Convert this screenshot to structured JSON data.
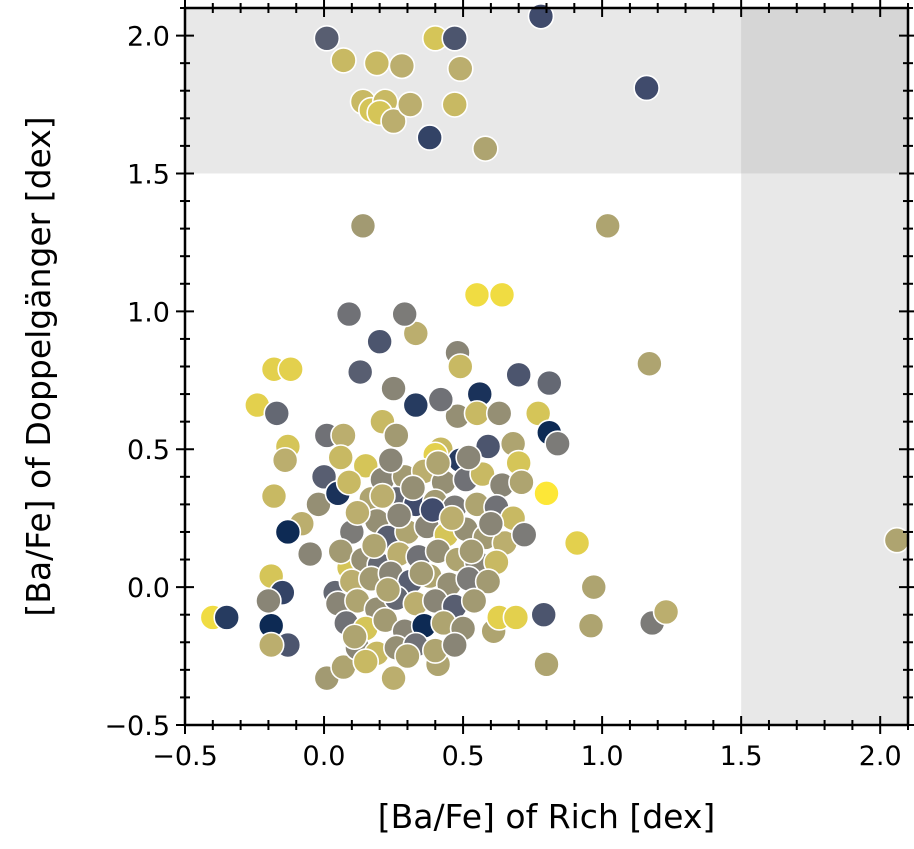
{
  "chart_data": {
    "type": "scatter",
    "title": "",
    "xlabel": "[Ba/Fe] of Rich [dex]",
    "ylabel": "[Ba/Fe] of Doppelgänger [dex]",
    "xlim": [
      -0.5,
      2.1
    ],
    "ylim": [
      -0.5,
      2.1
    ],
    "xticks": [
      -0.5,
      0.0,
      0.5,
      1.0,
      1.5,
      2.0
    ],
    "yticks": [
      -0.5,
      0.0,
      0.5,
      1.0,
      1.5,
      2.0
    ],
    "xtick_labels": [
      "−0.5",
      "0.0",
      "0.5",
      "1.0",
      "1.5",
      "2.0"
    ],
    "ytick_labels": [
      "−0.5",
      "0.0",
      "0.5",
      "1.0",
      "1.5",
      "2.0"
    ],
    "grid": false,
    "legend": "none",
    "colormap": "cividis",
    "shaded_regions": [
      {
        "axis": "y",
        "from": 1.5,
        "to": 2.1
      },
      {
        "axis": "x",
        "from": 1.5,
        "to": 2.1
      }
    ],
    "points": [
      [
        0.01,
        1.99,
        0.35
      ],
      [
        0.07,
        1.91,
        0.8
      ],
      [
        0.19,
        1.9,
        0.8
      ],
      [
        0.28,
        1.89,
        0.75
      ],
      [
        0.4,
        1.99,
        0.85
      ],
      [
        0.47,
        1.99,
        0.3
      ],
      [
        0.78,
        2.07,
        0.25
      ],
      [
        0.49,
        1.88,
        0.75
      ],
      [
        1.16,
        1.81,
        0.25
      ],
      [
        0.14,
        1.76,
        0.8
      ],
      [
        0.17,
        1.73,
        0.85
      ],
      [
        0.22,
        1.76,
        0.8
      ],
      [
        0.2,
        1.72,
        0.85
      ],
      [
        0.25,
        1.69,
        0.75
      ],
      [
        0.31,
        1.75,
        0.75
      ],
      [
        0.47,
        1.75,
        0.8
      ],
      [
        0.38,
        1.63,
        0.2
      ],
      [
        0.58,
        1.59,
        0.7
      ],
      [
        0.14,
        1.31,
        0.65
      ],
      [
        1.02,
        1.31,
        0.7
      ],
      [
        0.55,
        1.06,
        0.95
      ],
      [
        0.64,
        1.06,
        0.95
      ],
      [
        0.09,
        0.99,
        0.45
      ],
      [
        0.33,
        0.92,
        0.75
      ],
      [
        0.2,
        0.89,
        0.3
      ],
      [
        0.29,
        0.99,
        0.5
      ],
      [
        0.48,
        0.85,
        0.55
      ],
      [
        0.49,
        0.8,
        0.8
      ],
      [
        0.13,
        0.78,
        0.35
      ],
      [
        -0.18,
        0.79,
        0.9
      ],
      [
        -0.12,
        0.79,
        0.9
      ],
      [
        1.17,
        0.81,
        0.7
      ],
      [
        0.7,
        0.77,
        0.3
      ],
      [
        0.81,
        0.74,
        0.4
      ],
      [
        0.25,
        0.72,
        0.55
      ],
      [
        0.56,
        0.7,
        0.1
      ],
      [
        0.48,
        0.62,
        0.6
      ],
      [
        0.33,
        0.66,
        0.15
      ],
      [
        0.21,
        0.6,
        0.8
      ],
      [
        -0.24,
        0.66,
        0.9
      ],
      [
        -0.17,
        0.63,
        0.4
      ],
      [
        0.42,
        0.68,
        0.45
      ],
      [
        0.55,
        0.63,
        0.8
      ],
      [
        0.63,
        0.63,
        0.6
      ],
      [
        0.77,
        0.63,
        0.85
      ],
      [
        0.81,
        0.56,
        0.05
      ],
      [
        0.84,
        0.52,
        0.5
      ],
      [
        0.01,
        0.55,
        0.45
      ],
      [
        0.07,
        0.55,
        0.75
      ],
      [
        0.26,
        0.55,
        0.65
      ],
      [
        0.42,
        0.5,
        0.8
      ],
      [
        0.59,
        0.51,
        0.3
      ],
      [
        0.68,
        0.52,
        0.7
      ],
      [
        -0.13,
        0.51,
        0.85
      ],
      [
        -0.14,
        0.46,
        0.75
      ],
      [
        0.49,
        0.46,
        0.15
      ],
      [
        0.4,
        0.48,
        0.9
      ],
      [
        0.7,
        0.45,
        0.85
      ],
      [
        0.8,
        0.34,
        1.0
      ],
      [
        0.91,
        0.16,
        0.9
      ],
      [
        2.06,
        0.17,
        0.7
      ],
      [
        0.97,
        0.0,
        0.7
      ],
      [
        0.79,
        -0.1,
        0.3
      ],
      [
        0.96,
        -0.14,
        0.7
      ],
      [
        1.18,
        -0.13,
        0.5
      ],
      [
        1.23,
        -0.09,
        0.75
      ],
      [
        0.8,
        -0.28,
        0.7
      ],
      [
        -0.4,
        -0.11,
        0.95
      ],
      [
        -0.35,
        -0.11,
        0.15
      ],
      [
        -0.19,
        -0.14,
        0.05
      ],
      [
        -0.13,
        -0.21,
        0.3
      ],
      [
        -0.19,
        -0.21,
        0.75
      ],
      [
        -0.19,
        0.04,
        0.85
      ],
      [
        -0.15,
        -0.02,
        0.2
      ],
      [
        -0.2,
        -0.05,
        0.55
      ],
      [
        0.01,
        -0.33,
        0.65
      ],
      [
        0.25,
        -0.33,
        0.75
      ],
      [
        0.07,
        -0.29,
        0.7
      ],
      [
        0.41,
        -0.28,
        0.7
      ],
      [
        0.61,
        -0.16,
        0.7
      ],
      [
        0.63,
        -0.11,
        0.9
      ],
      [
        0.69,
        -0.11,
        0.9
      ],
      [
        0.04,
        -0.02,
        0.4
      ],
      [
        0.09,
        0.07,
        0.85
      ],
      [
        -0.18,
        0.33,
        0.8
      ],
      [
        -0.08,
        0.23,
        0.75
      ],
      [
        -0.13,
        0.2,
        0.05
      ],
      [
        -0.05,
        0.12,
        0.55
      ],
      [
        0.0,
        0.4,
        0.35
      ],
      [
        -0.02,
        0.3,
        0.6
      ],
      [
        0.05,
        0.34,
        0.1
      ],
      [
        0.1,
        0.2,
        0.5
      ],
      [
        0.17,
        0.32,
        0.7
      ],
      [
        0.06,
        0.47,
        0.8
      ],
      [
        0.15,
        0.44,
        0.85
      ],
      [
        0.21,
        0.39,
        0.55
      ],
      [
        0.29,
        0.4,
        0.65
      ],
      [
        0.36,
        0.42,
        0.75
      ],
      [
        0.43,
        0.38,
        0.6
      ],
      [
        0.51,
        0.39,
        0.45
      ],
      [
        0.57,
        0.41,
        0.8
      ],
      [
        0.64,
        0.37,
        0.55
      ],
      [
        0.71,
        0.38,
        0.7
      ],
      [
        0.26,
        0.32,
        0.4
      ],
      [
        0.33,
        0.3,
        0.25
      ],
      [
        0.4,
        0.31,
        0.65
      ],
      [
        0.47,
        0.29,
        0.5
      ],
      [
        0.55,
        0.3,
        0.7
      ],
      [
        0.62,
        0.29,
        0.45
      ],
      [
        0.68,
        0.25,
        0.8
      ],
      [
        0.19,
        0.24,
        0.6
      ],
      [
        0.12,
        0.27,
        0.75
      ],
      [
        0.23,
        0.18,
        0.35
      ],
      [
        0.3,
        0.2,
        0.7
      ],
      [
        0.37,
        0.22,
        0.55
      ],
      [
        0.44,
        0.19,
        0.85
      ],
      [
        0.51,
        0.21,
        0.6
      ],
      [
        0.58,
        0.18,
        0.65
      ],
      [
        0.65,
        0.16,
        0.75
      ],
      [
        0.72,
        0.19,
        0.5
      ],
      [
        0.06,
        0.13,
        0.65
      ],
      [
        0.14,
        0.1,
        0.6
      ],
      [
        0.2,
        0.08,
        0.4
      ],
      [
        0.27,
        0.12,
        0.75
      ],
      [
        0.34,
        0.11,
        0.45
      ],
      [
        0.41,
        0.13,
        0.6
      ],
      [
        0.48,
        0.1,
        0.7
      ],
      [
        0.55,
        0.09,
        0.55
      ],
      [
        0.62,
        0.09,
        0.8
      ],
      [
        0.1,
        0.02,
        0.75
      ],
      [
        0.17,
        0.03,
        0.65
      ],
      [
        0.24,
        0.05,
        0.55
      ],
      [
        0.31,
        0.02,
        0.35
      ],
      [
        0.38,
        0.04,
        0.7
      ],
      [
        0.45,
        0.01,
        0.6
      ],
      [
        0.52,
        0.03,
        0.5
      ],
      [
        0.59,
        0.02,
        0.65
      ],
      [
        0.05,
        -0.06,
        0.55
      ],
      [
        0.12,
        -0.05,
        0.7
      ],
      [
        0.19,
        -0.08,
        0.6
      ],
      [
        0.26,
        -0.04,
        0.4
      ],
      [
        0.33,
        -0.06,
        0.75
      ],
      [
        0.4,
        -0.05,
        0.55
      ],
      [
        0.47,
        -0.07,
        0.35
      ],
      [
        0.54,
        -0.05,
        0.65
      ],
      [
        0.08,
        -0.13,
        0.45
      ],
      [
        0.15,
        -0.15,
        0.85
      ],
      [
        0.22,
        -0.12,
        0.65
      ],
      [
        0.29,
        -0.16,
        0.55
      ],
      [
        0.36,
        -0.14,
        0.05
      ],
      [
        0.43,
        -0.13,
        0.7
      ],
      [
        0.5,
        -0.15,
        0.6
      ],
      [
        0.12,
        -0.22,
        0.55
      ],
      [
        0.19,
        -0.24,
        0.8
      ],
      [
        0.26,
        -0.22,
        0.6
      ],
      [
        0.33,
        -0.21,
        0.45
      ],
      [
        0.4,
        -0.23,
        0.7
      ],
      [
        0.47,
        -0.21,
        0.55
      ],
      [
        0.15,
        -0.27,
        0.8
      ],
      [
        0.3,
        -0.25,
        0.7
      ],
      [
        0.23,
        -0.01,
        0.7
      ],
      [
        0.39,
        0.28,
        0.25
      ],
      [
        0.32,
        0.36,
        0.6
      ],
      [
        0.24,
        0.46,
        0.55
      ],
      [
        0.52,
        0.47,
        0.55
      ],
      [
        0.18,
        0.15,
        0.7
      ],
      [
        0.35,
        0.05,
        0.65
      ],
      [
        0.09,
        0.38,
        0.8
      ],
      [
        0.27,
        0.26,
        0.55
      ],
      [
        0.6,
        0.23,
        0.55
      ],
      [
        0.11,
        -0.18,
        0.7
      ],
      [
        0.46,
        0.25,
        0.75
      ],
      [
        0.53,
        0.13,
        0.65
      ],
      [
        0.21,
        0.33,
        0.75
      ],
      [
        0.41,
        0.45,
        0.7
      ]
    ]
  }
}
